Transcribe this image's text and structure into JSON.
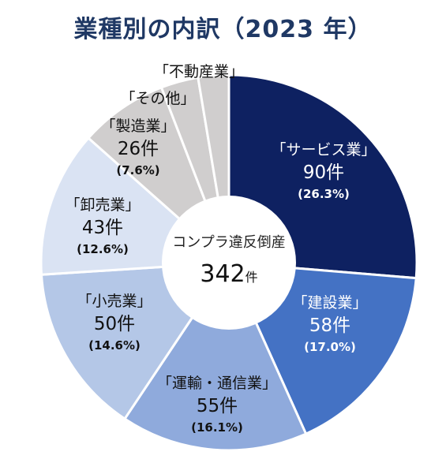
{
  "chart_data": {
    "type": "pie",
    "title": "業種別の内訳（2023 年）",
    "center_label": "コンプラ違反倒産",
    "total": 342,
    "total_unit": "件",
    "start_angle_deg": 0,
    "direction": "clockwise",
    "slices": [
      {
        "name": "「サービス業」",
        "count": 90,
        "count_text": "90件",
        "percent": 26.3,
        "percent_text": "(26.3%)",
        "color": "#0e2161",
        "text_color": "#ffffff"
      },
      {
        "name": "「建設業」",
        "count": 58,
        "count_text": "58件",
        "percent": 17.0,
        "percent_text": "(17.0%)",
        "color": "#4472c4",
        "text_color": "#ffffff"
      },
      {
        "name": "「運輸・通信業」",
        "count": 55,
        "count_text": "55件",
        "percent": 16.1,
        "percent_text": "(16.1%)",
        "color": "#8faadc",
        "text_color": "#111111"
      },
      {
        "name": "「小売業」",
        "count": 50,
        "count_text": "50件",
        "percent": 14.6,
        "percent_text": "(14.6%)",
        "color": "#b4c7e7",
        "text_color": "#111111"
      },
      {
        "name": "「卸売業」",
        "count": 43,
        "count_text": "43件",
        "percent": 12.6,
        "percent_text": "(12.6%)",
        "color": "#dae3f3",
        "text_color": "#111111"
      },
      {
        "name": "「製造業」",
        "count": 26,
        "count_text": "26件",
        "percent": 7.6,
        "percent_text": "(7.6%)",
        "color": "#d0cece",
        "text_color": "#111111"
      },
      {
        "name": "「その他」",
        "count": 11,
        "count_text": "",
        "percent": 3.2,
        "percent_text": "",
        "color": "#d0cece",
        "text_color": "#111111"
      },
      {
        "name": "「不動産業」",
        "count": 9,
        "count_text": "",
        "percent": 2.6,
        "percent_text": "",
        "color": "#d0cece",
        "text_color": "#111111"
      }
    ]
  }
}
